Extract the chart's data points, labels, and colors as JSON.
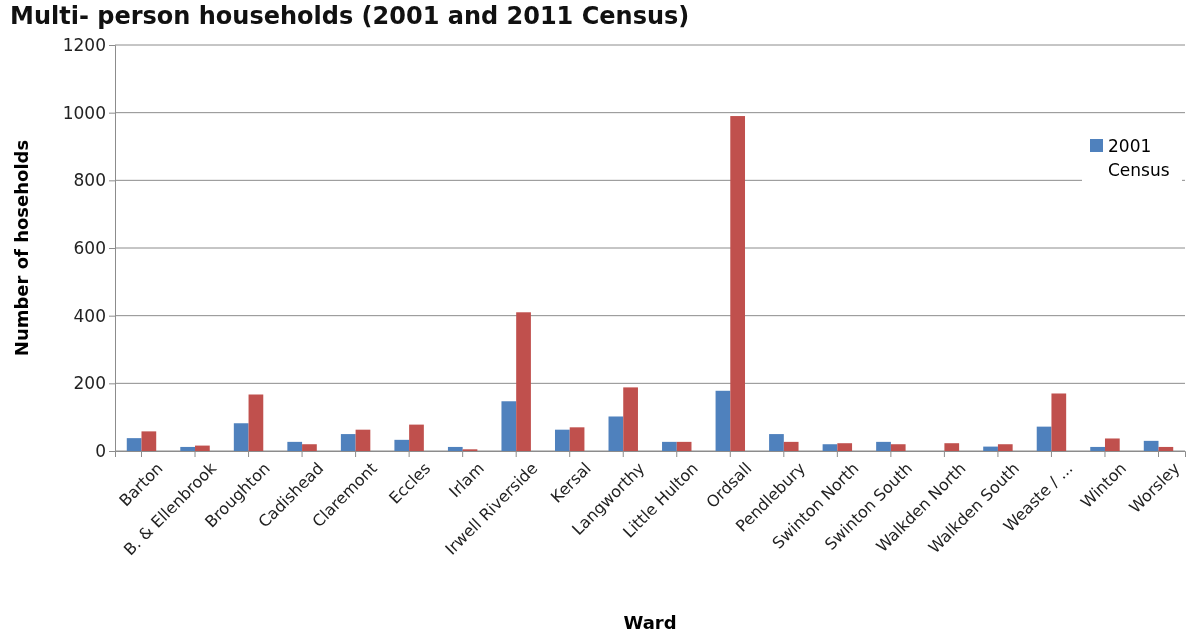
{
  "chart_data": {
    "type": "bar",
    "title": "Multi- person households (2001 and 2011 Census)",
    "xlabel": "Ward",
    "ylabel": "Number of hoseholds",
    "categories": [
      "Barton",
      "B. & Ellenbrook",
      "Broughton",
      "Cadishead",
      "Claremont",
      "Eccles",
      "Irlam",
      "Irwell Riverside",
      "Kersal",
      "Langworthy",
      "Little Hulton",
      "Ordsall",
      "Pendlebury",
      "Swinton North",
      "Swinton South",
      "Walkden North",
      "Walkden South",
      "Weaste / ...",
      "Winton",
      "Worsley"
    ],
    "series": [
      {
        "name": "2001 Census",
        "color": "#4f81bd",
        "values": [
          38,
          12,
          82,
          27,
          50,
          33,
          12,
          147,
          63,
          102,
          27,
          178,
          50,
          20,
          27,
          0,
          13,
          72,
          12,
          30
        ]
      },
      {
        "color": "#c0504d",
        "values": [
          58,
          16,
          167,
          20,
          63,
          78,
          5,
          410,
          70,
          188,
          27,
          990,
          27,
          23,
          20,
          23,
          20,
          170,
          37,
          12
        ]
      }
    ],
    "ylim": [
      0,
      1200
    ],
    "yticks": [
      0,
      200,
      400,
      600,
      800,
      1000,
      1200
    ],
    "grid": "y",
    "legend": "top right"
  }
}
